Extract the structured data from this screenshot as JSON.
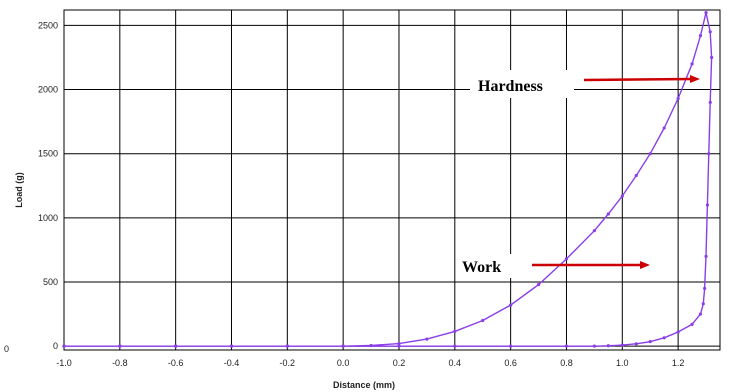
{
  "chart_data": {
    "type": "line",
    "xlabel": "Distance (mm)",
    "ylabel": "Load (g)",
    "xlim": [
      -1.0,
      1.35
    ],
    "ylim": [
      -30,
      2620
    ],
    "x_ticks": [
      "-1.0",
      "-0.8",
      "-0.6",
      "-0.4",
      "-0.2",
      "0.0",
      "0.2",
      "0.4",
      "0.6",
      "0.8",
      "1.0",
      "1.2"
    ],
    "y_ticks": [
      "0",
      "500",
      "1000",
      "1500",
      "2000",
      "2500"
    ],
    "origin_label": "0",
    "grid": true,
    "series": [
      {
        "color": "#8a3ee8",
        "x": [
          -1.0,
          -0.8,
          -0.6,
          -0.4,
          -0.2,
          0.0,
          0.1,
          0.2,
          0.3,
          0.4,
          0.5,
          0.6,
          0.7,
          0.8,
          0.9,
          0.95,
          1.0,
          1.05,
          1.1,
          1.15,
          1.2,
          1.25,
          1.28,
          1.3,
          1.315,
          1.32,
          1.315,
          1.31,
          1.305,
          1.3,
          1.295,
          1.29,
          1.28,
          1.25,
          1.2,
          1.15,
          1.1,
          1.05,
          1.0,
          0.95,
          0.9,
          0.8,
          0.6,
          0.4,
          0.2,
          0.0,
          -0.2,
          -0.4,
          -0.6,
          -0.8,
          -1.0
        ],
        "y": [
          0,
          0,
          0,
          0,
          0,
          0,
          5,
          20,
          55,
          115,
          200,
          320,
          480,
          680,
          900,
          1030,
          1170,
          1330,
          1500,
          1700,
          1930,
          2200,
          2420,
          2600,
          2450,
          2250,
          1900,
          1500,
          1100,
          700,
          450,
          330,
          250,
          170,
          110,
          65,
          35,
          18,
          8,
          3,
          0,
          0,
          0,
          0,
          0,
          0,
          0,
          0,
          0,
          0,
          0
        ]
      }
    ],
    "annotations": [
      {
        "text": "Hardness",
        "color": "#cc0000"
      },
      {
        "text": "Work",
        "color": "#cc0000"
      }
    ]
  }
}
